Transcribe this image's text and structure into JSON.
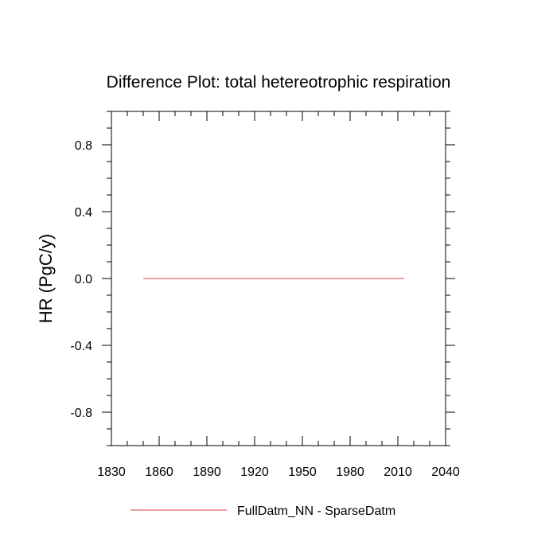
{
  "chart_data": {
    "type": "line",
    "title": "Difference Plot: total hetereotrophic respiration",
    "xlabel": "",
    "ylabel": "HR  (PgC/y)",
    "xlim": [
      1830,
      2040
    ],
    "ylim": [
      -1,
      1
    ],
    "x_ticks": [
      "1830",
      "1860",
      "1890",
      "1920",
      "1950",
      "1980",
      "2010",
      "2040"
    ],
    "y_ticks": [
      "0.8",
      "0.4",
      "0.0",
      "-0.4",
      "-0.8"
    ],
    "legend_position": "bottom",
    "series": [
      {
        "name": "FullDatm_NN - SparseDatm",
        "color": "#e06666",
        "x": [
          1850,
          2014
        ],
        "y": [
          0.0,
          0.0
        ]
      }
    ]
  }
}
